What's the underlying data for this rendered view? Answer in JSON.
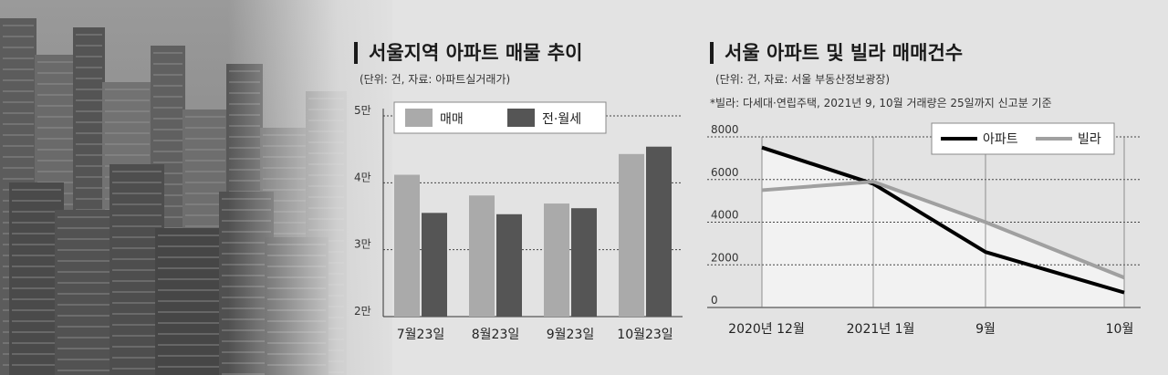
{
  "left_chart": {
    "title": "서울지역 아파트 매물 추이",
    "subtitle": "(단위: 건, 자료: 아파트실거래가)"
  },
  "right_chart": {
    "title": "서울 아파트 및 빌라 매매건수",
    "subtitle": "(단위: 건, 자료: 서울 부동산정보광장)",
    "note": "*빌라: 다세대·연립주택, 2021년 9, 10월 거래량은 25일까지 신고분 기준"
  },
  "chart_data": [
    {
      "type": "bar",
      "title": "서울지역 아파트 매물 추이",
      "categories": [
        "7월23일",
        "8월23일",
        "9월23일",
        "10월23일"
      ],
      "series": [
        {
          "name": "매매",
          "values": [
            41200,
            38100,
            36900,
            44300
          ],
          "color": "#aaaaaa"
        },
        {
          "name": "전·월세",
          "values": [
            35500,
            35300,
            36200,
            45400
          ],
          "color": "#555555"
        }
      ],
      "yticks": [
        20000,
        30000,
        40000,
        50000
      ],
      "ytick_labels": [
        "2만",
        "3만",
        "4만",
        "5만"
      ],
      "ylim": [
        20000,
        50000
      ],
      "legend": "top",
      "grid": true
    },
    {
      "type": "line",
      "title": "서울 아파트 및 빌라 매매건수",
      "categories": [
        "2020년 12월",
        "2021년 1월",
        "9월",
        "10월"
      ],
      "series": [
        {
          "name": "아파트",
          "values": [
            7500,
            5800,
            2600,
            700
          ],
          "color": "#000000"
        },
        {
          "name": "빌라",
          "values": [
            5500,
            5900,
            4000,
            1400
          ],
          "color": "#a0a0a0"
        }
      ],
      "yticks": [
        0,
        2000,
        4000,
        6000,
        8000
      ],
      "ytick_labels": [
        "0",
        "2000",
        "4000",
        "6000",
        "8000"
      ],
      "ylim": [
        0,
        8000
      ],
      "legend": "top-right",
      "grid": true
    }
  ]
}
